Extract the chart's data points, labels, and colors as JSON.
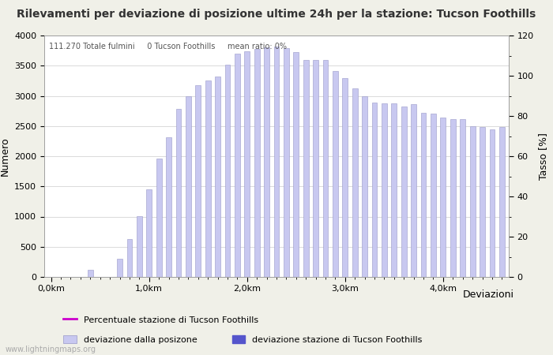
{
  "title": "Rilevamenti per deviazione di posizione ultime 24h per la stazione: Tucson Foothills",
  "xlabel": "Deviazioni",
  "ylabel_left": "Numero",
  "ylabel_right": "Tasso [%]",
  "subtitle_text": "111.270 Totale fulmini     0 Tucson Foothills     mean ratio: 0%",
  "watermark": "www.lightningmaps.org",
  "bar_color": "#c8c8f0",
  "bar_edge_color": "#9898c8",
  "line_color": "#cc00cc",
  "station_bar_color": "#5555cc",
  "ylim_left": [
    0,
    4000
  ],
  "ylim_right": [
    0,
    120
  ],
  "yticks_left": [
    0,
    500,
    1000,
    1500,
    2000,
    2500,
    3000,
    3500,
    4000
  ],
  "yticks_right": [
    0,
    20,
    40,
    60,
    80,
    100,
    120
  ],
  "xtick_labels": [
    "0,0km",
    "1,0km",
    "2,0km",
    "3,0km",
    "4,0km"
  ],
  "xtick_positions": [
    0,
    10,
    20,
    30,
    40
  ],
  "bar_values": [
    0,
    0,
    0,
    0,
    120,
    0,
    0,
    300,
    630,
    1010,
    1450,
    1960,
    2310,
    2790,
    3000,
    3180,
    3250,
    3320,
    3520,
    3700,
    3740,
    3780,
    3810,
    3820,
    3790,
    3730,
    3600,
    3590,
    3590,
    3410,
    3300,
    3130,
    3000,
    2890,
    2870,
    2870,
    2830,
    2860,
    2720,
    2700,
    2640,
    2620,
    2620,
    2500,
    2490,
    2450,
    2480
  ],
  "legend_entries": [
    {
      "label": "deviazione dalla posizone",
      "color": "#c8c8f0",
      "edgecolor": "#9898c8",
      "type": "bar"
    },
    {
      "label": "deviazione stazione di Tucson Foothills",
      "color": "#5555cc",
      "edgecolor": "#5555cc",
      "type": "bar"
    },
    {
      "label": "Percentuale stazione di Tucson Foothills",
      "color": "#cc00cc",
      "type": "line"
    }
  ],
  "title_fontsize": 10,
  "axis_fontsize": 8,
  "legend_fontsize": 8,
  "watermark_fontsize": 7,
  "bg_color": "#f0f0e8",
  "plot_bg_color": "#ffffff"
}
